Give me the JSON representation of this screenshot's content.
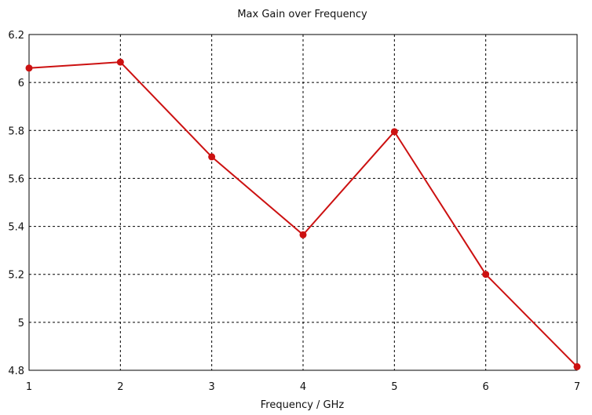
{
  "chart_data": {
    "type": "line",
    "title": "Max Gain over Frequency",
    "xlabel": "Frequency / GHz",
    "ylabel": "",
    "x": [
      1,
      2,
      3,
      4,
      5,
      6,
      7
    ],
    "series": [
      {
        "values": [
          6.06,
          6.085,
          5.69,
          5.365,
          5.795,
          5.2,
          4.815
        ],
        "color": "#cc1111"
      }
    ],
    "xlim": [
      1,
      7
    ],
    "ylim": [
      4.8,
      6.2
    ],
    "xticks": [
      "1",
      "2",
      "3",
      "4",
      "5",
      "6",
      "7"
    ],
    "yticks": [
      "4.8",
      "5",
      "5.2",
      "5.4",
      "5.6",
      "5.8",
      "6",
      "6.2"
    ],
    "grid": true,
    "grid_style": "dashed"
  }
}
